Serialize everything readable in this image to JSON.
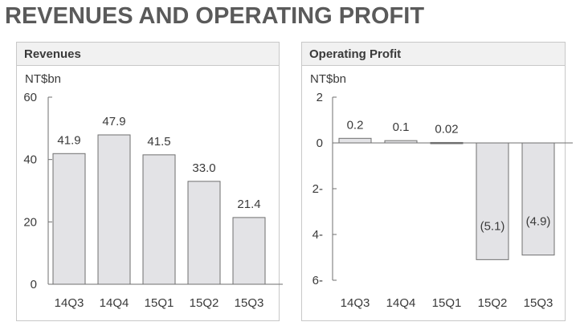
{
  "page": {
    "title": "REVENUES AND OPERATING PROFIT"
  },
  "chart_data": [
    {
      "type": "bar",
      "title": "Revenues",
      "unit": "NT$bn",
      "categories": [
        "14Q3",
        "14Q4",
        "15Q1",
        "15Q2",
        "15Q3"
      ],
      "values": [
        41.9,
        47.9,
        41.5,
        33.0,
        21.4
      ],
      "value_labels": [
        "41.9",
        "47.9",
        "41.5",
        "33.0",
        "21.4"
      ],
      "ylim": [
        0,
        60
      ],
      "yticks": [
        0,
        20,
        40,
        60
      ],
      "ytick_labels": [
        "0",
        "20",
        "40",
        "60"
      ],
      "grid": false,
      "colors": {
        "bar_fill": "#e3e3e6",
        "bar_stroke": "#6f6f6f"
      }
    },
    {
      "type": "bar",
      "title": "Operating Profit",
      "unit": "NT$bn",
      "categories": [
        "14Q3",
        "14Q4",
        "15Q1",
        "15Q2",
        "15Q3"
      ],
      "values": [
        0.2,
        0.1,
        0.02,
        -5.1,
        -4.9
      ],
      "value_labels": [
        "0.2",
        "0.1",
        "0.02",
        "(5.1)",
        "(4.9)"
      ],
      "ylim": [
        -6,
        2
      ],
      "yticks": [
        2,
        0,
        -2,
        -4,
        -6
      ],
      "ytick_labels": [
        "2",
        "0",
        "2-",
        "4-",
        "6-"
      ],
      "grid": false,
      "colors": {
        "bar_fill": "#e3e3e6",
        "bar_stroke": "#6f6f6f"
      }
    }
  ]
}
